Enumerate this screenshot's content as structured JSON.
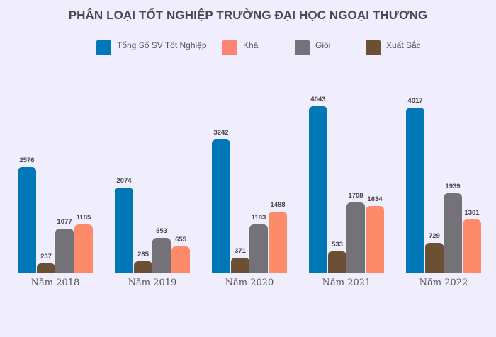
{
  "chart_data": {
    "type": "bar",
    "title": "PHÂN LOẠI TỐT NGHIỆP TRƯỜNG ĐẠI HỌC NGOẠI THƯƠNG",
    "xlabel": "",
    "ylabel": "",
    "categories": [
      "Năm 2018",
      "Năm 2019",
      "Năm 2020",
      "Năm 2021",
      "Năm 2022"
    ],
    "series": [
      {
        "name": "Tổng Số SV Tốt Nghiệp",
        "color": "#0077b6",
        "values": [
          2576,
          2074,
          3242,
          4043,
          4017
        ]
      },
      {
        "name": "Xuất Sắc",
        "color": "#6b5036",
        "values": [
          237,
          285,
          371,
          533,
          729
        ]
      },
      {
        "name": "Giỏi",
        "color": "#747278",
        "values": [
          1077,
          853,
          1183,
          1708,
          1939
        ]
      },
      {
        "name": "Khá",
        "color": "#fd8a68",
        "values": [
          1185,
          655,
          1488,
          1634,
          1301
        ]
      }
    ],
    "legend_order": [
      "Tổng Số SV Tốt Nghiệp",
      "Khá",
      "Giỏi",
      "Xuất Sắc"
    ],
    "legend_position": "top",
    "grid": false,
    "data_labels": true,
    "ylim": [
      0,
      4100
    ]
  },
  "legend": [
    {
      "label": "Tổng Số SV Tốt Nghiệp",
      "color": "#0077b6"
    },
    {
      "label": "Khá",
      "color": "#fd8373"
    },
    {
      "label": "Giỏi",
      "color": "#747278"
    },
    {
      "label": "Xuất Sắc",
      "color": "#6b5036"
    }
  ]
}
